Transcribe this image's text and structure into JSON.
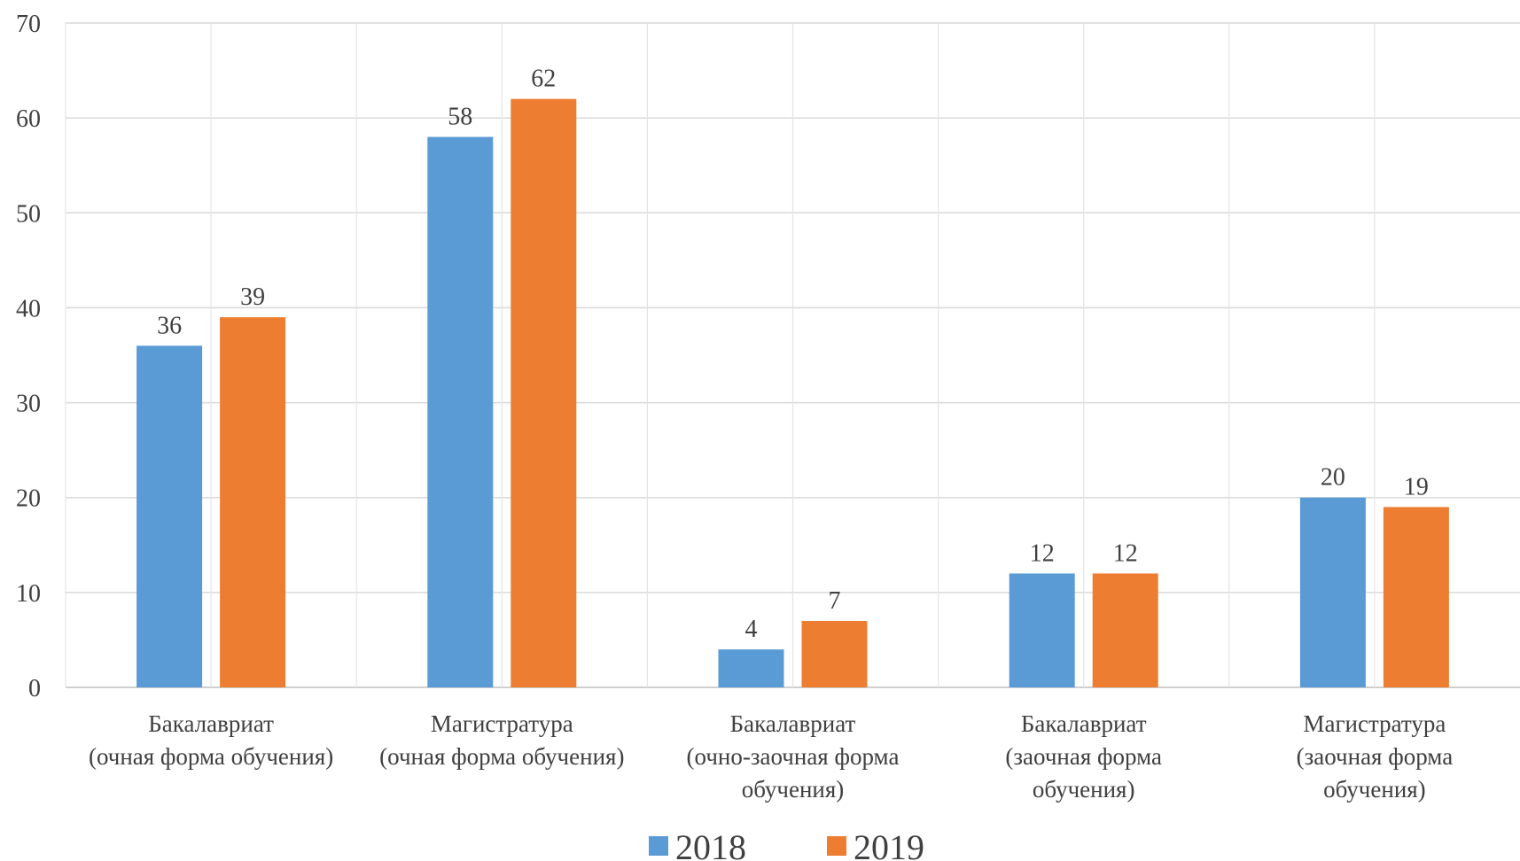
{
  "chart_data": {
    "type": "bar",
    "categories": [
      [
        "Бакалавриат",
        "(очная форма обучения)"
      ],
      [
        "Магистратура",
        "(очная форма обучения)"
      ],
      [
        "Бакалавриат",
        "(очно-заочная форма",
        "обучения)"
      ],
      [
        "Бакалавриат",
        "(заочная форма",
        "обучения)"
      ],
      [
        "Магистратура",
        "(заочная форма",
        "обучения)"
      ]
    ],
    "series": [
      {
        "name": "2018",
        "color": "#5B9BD5",
        "values": [
          36,
          58,
          4,
          12,
          20
        ]
      },
      {
        "name": "2019",
        "color": "#ED7D31",
        "values": [
          39,
          62,
          7,
          12,
          19
        ]
      }
    ],
    "ylim": [
      0,
      70
    ],
    "yticks": [
      0,
      10,
      20,
      30,
      40,
      50,
      60,
      70
    ],
    "grid": true,
    "legend_position": "bottom",
    "data_labels": true
  }
}
